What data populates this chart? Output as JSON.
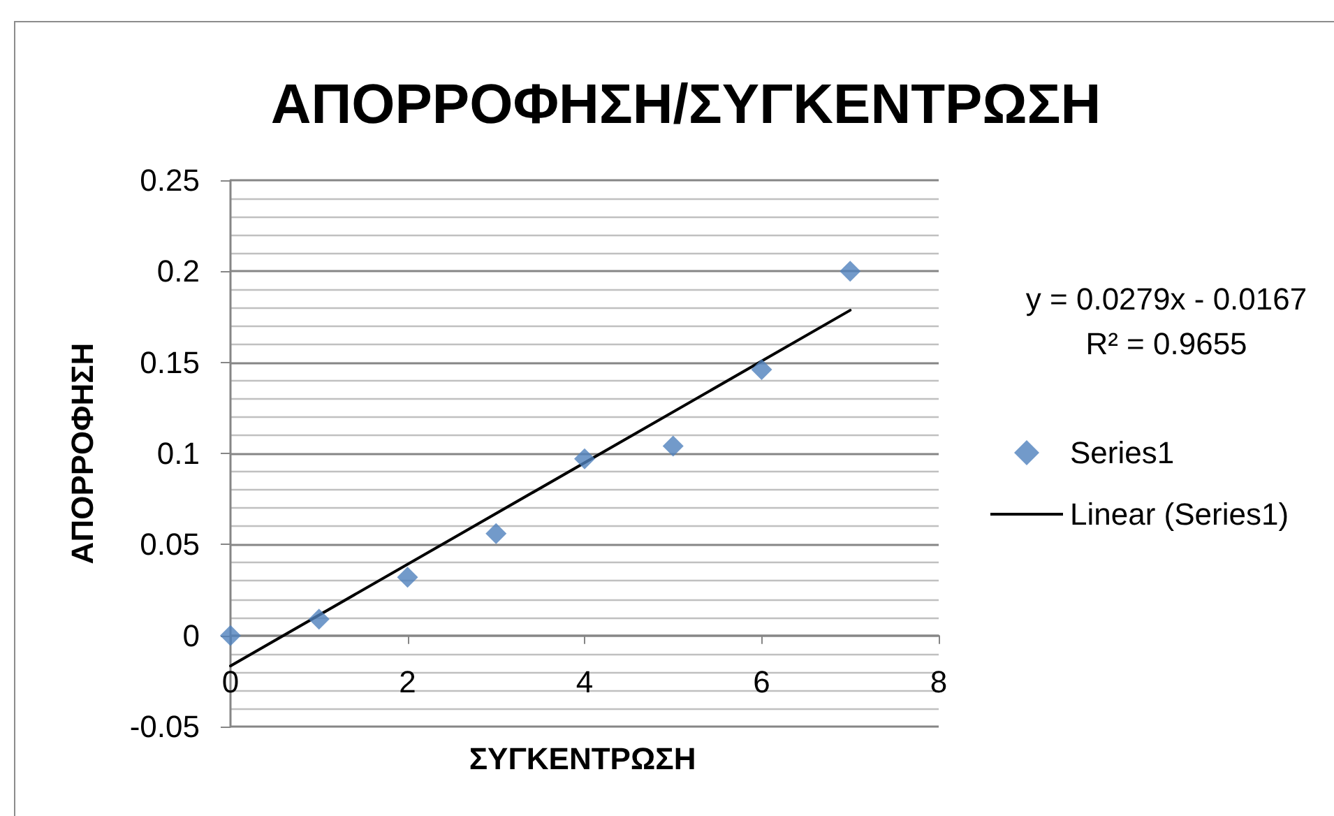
{
  "chart_data": {
    "type": "scatter",
    "title": "ΑΠΟΡΡΟΦΗΣΗ/ΣΥΓΚΕΝΤΡΩΣΗ",
    "xlabel": "ΣΥΓΚΕΝΤΡΩΣΗ",
    "ylabel": "ΑΠΟΡΡΟΦΗΣΗ",
    "annotations": [
      "y = 0.0279x - 0.0167",
      "R² = 0.9655"
    ],
    "x": [
      0,
      1,
      2,
      3,
      4,
      5,
      6,
      7
    ],
    "series": [
      {
        "name": "Series1",
        "color": "#4f81bd",
        "values": [
          0,
          0.009,
          0.032,
          0.056,
          0.097,
          0.104,
          0.146,
          0.2
        ]
      },
      {
        "name": "Linear (Series1)",
        "type": "line",
        "color": "#000000",
        "x": [
          0,
          7
        ],
        "values": [
          -0.0167,
          0.1786
        ],
        "marker": "none",
        "line_style": "solid"
      }
    ],
    "xlim": [
      0,
      8
    ],
    "xticks": [
      0,
      2,
      4,
      6,
      8
    ],
    "ylim": [
      -0.05,
      0.25
    ],
    "yticks": [
      -0.05,
      0,
      0.05,
      0.1,
      0.15,
      0.2,
      0.25
    ],
    "grid": "y",
    "legend": "right",
    "marker": "diamond"
  }
}
